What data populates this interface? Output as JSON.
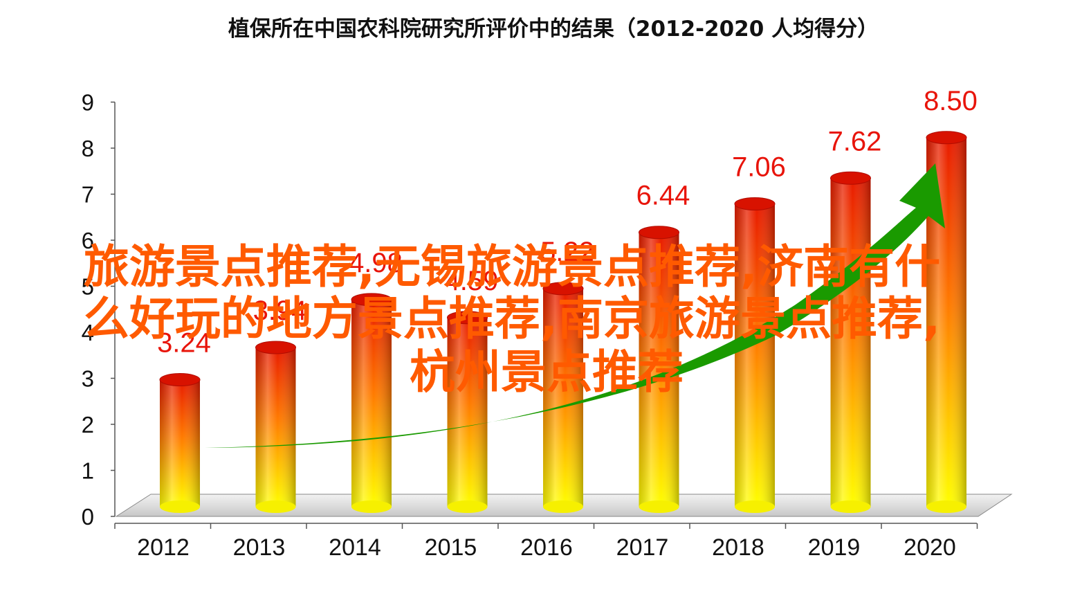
{
  "chart_data": {
    "type": "bar",
    "title": "植保所在中国农科院研究所评价中的结果（2012-2020  人均得分）",
    "xlabel": "",
    "ylabel": "",
    "categories": [
      "2012",
      "2013",
      "2014",
      "2015",
      "2016",
      "2017",
      "2018",
      "2019",
      "2020"
    ],
    "values": [
      3.24,
      3.94,
      4.98,
      4.59,
      5.22,
      6.44,
      7.06,
      7.62,
      8.5
    ],
    "data_labels": [
      "3.24",
      "3.94",
      "4.98",
      "4.59",
      "5.22",
      "6.44",
      "7.06",
      "7.62",
      "8.50"
    ],
    "y_ticks": [
      "0",
      "1",
      "2",
      "3",
      "4",
      "5",
      "6",
      "7",
      "8",
      "9"
    ],
    "ylim": [
      0,
      9
    ],
    "grid": false,
    "legend": "none",
    "style": "3d-cylinder",
    "colors": {
      "bar_top": "#e81a00",
      "bar_mid": "#ff8c00",
      "bar_bottom": "#ffff00",
      "label": "#e8140a",
      "trend_arrow": "#1a9a00",
      "floor": "#d0d0d0"
    }
  },
  "overlay": {
    "lines": [
      "旅游景点推荐,无锡旅游景点推荐,济南有什",
      "么好玩的地方景点推荐,南京旅游景点推荐,",
      "杭州景点推荐"
    ],
    "color": "#ff5a00"
  }
}
